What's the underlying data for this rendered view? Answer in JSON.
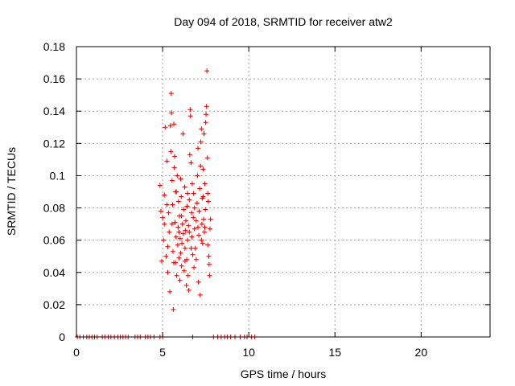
{
  "chart_data": {
    "type": "scatter",
    "title": "Day 094 of 2018, SRMTID for receiver atw2",
    "xlabel": "GPS time / hours",
    "ylabel": "SRMTID / TECUs",
    "xlim": [
      0,
      24
    ],
    "ylim": [
      0,
      0.18
    ],
    "x_ticks": [
      "0",
      "5",
      "10",
      "15",
      "20"
    ],
    "y_ticks": [
      "0",
      "0.02",
      "0.04",
      "0.06",
      "0.08",
      "0.1",
      "0.12",
      "0.14",
      "0.16",
      "0.18"
    ],
    "grid": true,
    "legend": "none",
    "marker": "plus",
    "color": "#e00000",
    "series": [
      {
        "points": [
          [
            0.05,
            0
          ],
          [
            0.2,
            0
          ],
          [
            0.4,
            0
          ],
          [
            0.6,
            0
          ],
          [
            0.75,
            0
          ],
          [
            0.9,
            0
          ],
          [
            1.05,
            0
          ],
          [
            1.2,
            0
          ],
          [
            1.5,
            0
          ],
          [
            1.65,
            0
          ],
          [
            1.85,
            0
          ],
          [
            2.0,
            0
          ],
          [
            2.2,
            0
          ],
          [
            2.4,
            0
          ],
          [
            2.55,
            0
          ],
          [
            2.7,
            0
          ],
          [
            2.85,
            0
          ],
          [
            3.0,
            0
          ],
          [
            3.4,
            0
          ],
          [
            3.55,
            0
          ],
          [
            3.7,
            0
          ],
          [
            4.0,
            0
          ],
          [
            4.15,
            0
          ],
          [
            4.3,
            0
          ],
          [
            4.5,
            0
          ],
          [
            4.85,
            0
          ],
          [
            5.0,
            0
          ],
          [
            6.75,
            0
          ],
          [
            7.95,
            0
          ],
          [
            8.2,
            0
          ],
          [
            8.4,
            0
          ],
          [
            8.6,
            0
          ],
          [
            8.75,
            0
          ],
          [
            8.95,
            0
          ],
          [
            9.2,
            0
          ],
          [
            9.5,
            0
          ],
          [
            9.75,
            0
          ],
          [
            9.9,
            0
          ],
          [
            10.15,
            0
          ],
          [
            10.35,
            0
          ],
          [
            4.85,
            0.094
          ],
          [
            4.9,
            0.078
          ],
          [
            4.95,
            0.047
          ],
          [
            5.0,
            0.074
          ],
          [
            5.05,
            0.06
          ],
          [
            5.1,
            0.088
          ],
          [
            5.15,
            0.13
          ],
          [
            5.2,
            0.05
          ],
          [
            5.25,
            0.109
          ],
          [
            5.3,
            0.04
          ],
          [
            5.35,
            0.077
          ],
          [
            5.38,
            0.065
          ],
          [
            5.42,
            0.028
          ],
          [
            5.45,
            0.131
          ],
          [
            5.48,
            0.115
          ],
          [
            5.5,
            0.151
          ],
          [
            5.52,
            0.139
          ],
          [
            5.55,
            0.097
          ],
          [
            5.58,
            0.082
          ],
          [
            5.6,
            0.053
          ],
          [
            5.62,
            0.017
          ],
          [
            5.65,
            0.132
          ],
          [
            5.68,
            0.105
          ],
          [
            5.7,
            0.112
          ],
          [
            5.72,
            0.071
          ],
          [
            5.75,
            0.046
          ],
          [
            5.78,
            0.062
          ],
          [
            5.8,
            0.09
          ],
          [
            5.82,
            0.038
          ],
          [
            5.85,
            0.1
          ],
          [
            5.88,
            0.057
          ],
          [
            5.9,
            0.068
          ],
          [
            5.92,
            0.084
          ],
          [
            5.95,
            0.049
          ],
          [
            5.98,
            0.075
          ],
          [
            6.0,
            0.035
          ],
          [
            6.02,
            0.061
          ],
          [
            6.05,
            0.052
          ],
          [
            6.08,
            0.087
          ],
          [
            6.1,
            0.044
          ],
          [
            6.12,
            0.058
          ],
          [
            6.15,
            0.07
          ],
          [
            6.18,
            0.126
          ],
          [
            6.2,
            0.064
          ],
          [
            6.22,
            0.079
          ],
          [
            6.25,
            0.041
          ],
          [
            6.28,
            0.093
          ],
          [
            6.3,
            0.055
          ],
          [
            6.32,
            0.066
          ],
          [
            6.35,
            0.072
          ],
          [
            6.38,
            0.032
          ],
          [
            6.4,
            0.048
          ],
          [
            6.42,
            0.081
          ],
          [
            6.45,
            0.06
          ],
          [
            6.48,
            0.038
          ],
          [
            6.5,
            0.069
          ],
          [
            6.52,
            0.029
          ],
          [
            6.55,
            0.085
          ],
          [
            6.58,
            0.113
          ],
          [
            6.6,
            0.141
          ],
          [
            6.62,
            0.137
          ],
          [
            6.65,
            0.108
          ],
          [
            6.68,
            0.077
          ],
          [
            6.7,
            0.062
          ],
          [
            6.72,
            0.095
          ],
          [
            6.75,
            0.051
          ],
          [
            6.78,
            0.074
          ],
          [
            6.8,
            0.089
          ],
          [
            6.82,
            0.043
          ],
          [
            6.85,
            0.067
          ],
          [
            6.9,
            0.055
          ],
          [
            6.95,
            0.072
          ],
          [
            7.0,
            0.083
          ],
          [
            7.02,
            0.1
          ],
          [
            7.05,
            0.117
          ],
          [
            7.08,
            0.034
          ],
          [
            7.1,
            0.063
          ],
          [
            7.12,
            0.078
          ],
          [
            7.15,
            0.092
          ],
          [
            7.18,
            0.026
          ],
          [
            7.2,
            0.106
          ],
          [
            7.22,
            0.121
          ],
          [
            7.25,
            0.129
          ],
          [
            7.28,
            0.07
          ],
          [
            7.3,
            0.086
          ],
          [
            7.32,
            0.058
          ],
          [
            7.35,
            0.104
          ],
          [
            7.38,
            0.073
          ],
          [
            7.4,
            0.126
          ],
          [
            7.42,
            0.065
          ],
          [
            7.45,
            0.095
          ],
          [
            7.48,
            0.079
          ],
          [
            7.5,
            0.133
          ],
          [
            7.52,
            0.138
          ],
          [
            7.55,
            0.143
          ],
          [
            7.57,
            0.165
          ],
          [
            7.6,
            0.111
          ],
          [
            7.62,
            0.089
          ],
          [
            7.65,
            0.084
          ],
          [
            7.68,
            0.05
          ],
          [
            7.7,
            0.045
          ],
          [
            7.72,
            0.038
          ],
          [
            7.75,
            0.067
          ],
          [
            7.78,
            0.073
          ],
          [
            5.1,
            0.07
          ],
          [
            5.3,
            0.056
          ],
          [
            5.55,
            0.07
          ],
          [
            5.75,
            0.09
          ],
          [
            5.95,
            0.065
          ],
          [
            6.1,
            0.075
          ],
          [
            6.3,
            0.047
          ],
          [
            6.45,
            0.089
          ],
          [
            6.65,
            0.055
          ],
          [
            6.85,
            0.08
          ],
          [
            7.05,
            0.068
          ],
          [
            7.25,
            0.06
          ],
          [
            7.45,
            0.068
          ],
          [
            7.62,
            0.057
          ],
          [
            5.25,
            0.082
          ],
          [
            5.65,
            0.046
          ],
          [
            6.05,
            0.098
          ],
          [
            6.55,
            0.065
          ],
          [
            6.95,
            0.048
          ],
          [
            7.35,
            0.087
          ]
        ]
      }
    ]
  }
}
